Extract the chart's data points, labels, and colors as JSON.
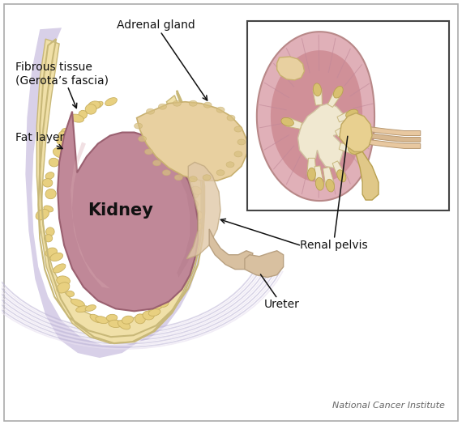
{
  "labels": {
    "adrenal_gland": "Adrenal gland",
    "fibrous_tissue": "Fibrous tissue\n(Gerota’s fascia)",
    "fat_layer": "Fat layer",
    "kidney": "Kidney",
    "renal_pelvis": "Renal pelvis",
    "ureter": "Ureter",
    "credit": "National Cancer Institute"
  },
  "colors": {
    "kidney_main": "#c08898",
    "kidney_mid": "#b87888",
    "kidney_dark": "#9a6070",
    "kidney_light": "#d8a8b0",
    "adrenal": "#e8d0a0",
    "adrenal_dark": "#c8b070",
    "fat": "#f0e0a8",
    "fat_nodule": "#e8d080",
    "fat_nodule_edge": "#c8b060",
    "fibrous_outer": "#e8dab8",
    "fibrous_edge": "#c8b878",
    "muscle_base": "#d8d0e8",
    "muscle_light": "#e8e0f0",
    "muscle_stripe": "#c0b8d8",
    "bg": "#ffffff",
    "border": "#999999",
    "text": "#111111",
    "arrow": "#111111",
    "inset_bg": "#ffffff",
    "inset_kidney": "#e0b0b8",
    "inset_cortex": "#d8a0a8",
    "inset_medulla": "#e8c0c0",
    "inset_pelvis": "#e8d0a0",
    "inset_calyx": "#e0c888",
    "inset_adrenal": "#e8d0a0",
    "inset_ureter": "#e0c898",
    "inset_vessel": "#e8d0b0",
    "credit_color": "#666666"
  }
}
